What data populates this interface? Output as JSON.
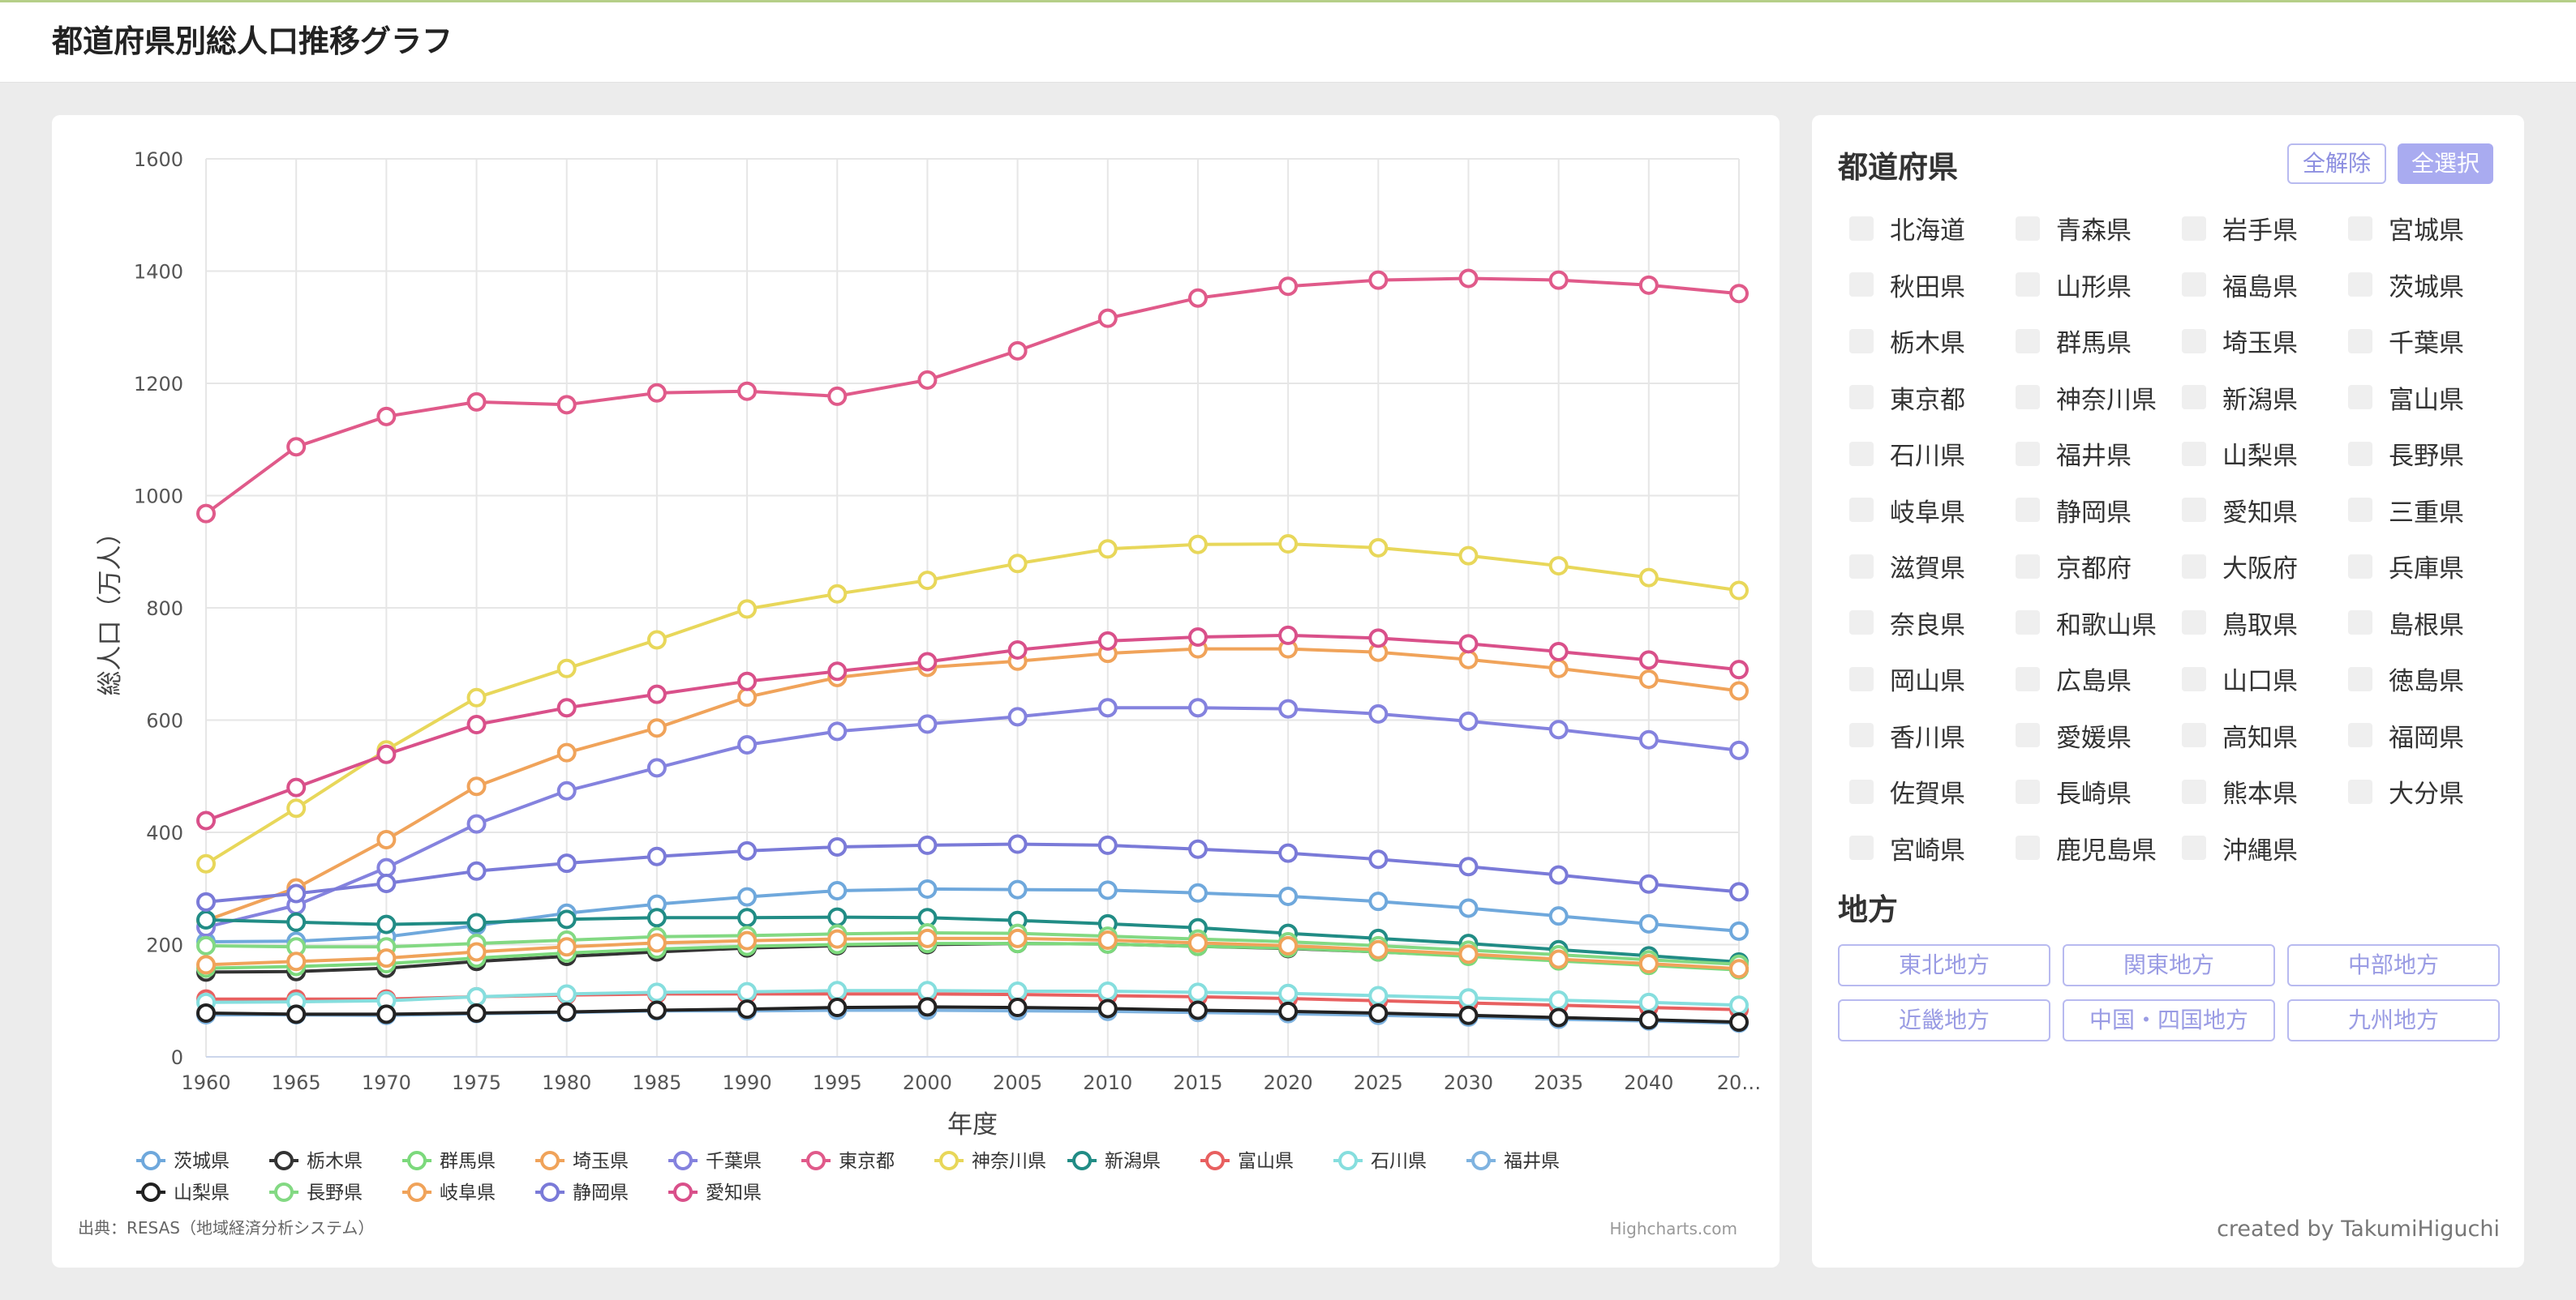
{
  "header": {
    "title": "都道府県別総人口推移グラフ"
  },
  "sidebar": {
    "pref_title": "都道府県",
    "clear_all_label": "全解除",
    "select_all_label": "全選択",
    "prefectures": [
      "北海道",
      "青森県",
      "岩手県",
      "宮城県",
      "秋田県",
      "山形県",
      "福島県",
      "茨城県",
      "栃木県",
      "群馬県",
      "埼玉県",
      "千葉県",
      "東京都",
      "神奈川県",
      "新潟県",
      "富山県",
      "石川県",
      "福井県",
      "山梨県",
      "長野県",
      "岐阜県",
      "静岡県",
      "愛知県",
      "三重県",
      "滋賀県",
      "京都府",
      "大阪府",
      "兵庫県",
      "奈良県",
      "和歌山県",
      "鳥取県",
      "島根県",
      "岡山県",
      "広島県",
      "山口県",
      "徳島県",
      "香川県",
      "愛媛県",
      "高知県",
      "福岡県",
      "佐賀県",
      "長崎県",
      "熊本県",
      "大分県",
      "宮崎県",
      "鹿児島県",
      "沖縄県"
    ],
    "region_title": "地方",
    "regions": [
      "東北地方",
      "関東地方",
      "中部地方",
      "近畿地方",
      "中国・四国地方",
      "九州地方"
    ],
    "credit": "created by TakumiHiguchi"
  },
  "chart_data": {
    "type": "line",
    "title": "",
    "xlabel": "年度",
    "ylabel": "総人口（万人）",
    "ylim": [
      0,
      1600
    ],
    "yticks": [
      "0",
      "200",
      "400",
      "600",
      "800",
      "1000",
      "1200",
      "1400",
      "1600"
    ],
    "x": [
      "1960",
      "1965",
      "1970",
      "1975",
      "1980",
      "1985",
      "1990",
      "1995",
      "2000",
      "2005",
      "2010",
      "2015",
      "2020",
      "2025",
      "2030",
      "2035",
      "2040",
      "2045"
    ],
    "x_tick_labels": [
      "1960",
      "1965",
      "1970",
      "1975",
      "1980",
      "1985",
      "1990",
      "1995",
      "2000",
      "2005",
      "2010",
      "2015",
      "2020",
      "2025",
      "2030",
      "2035",
      "2040",
      "20…"
    ],
    "grid": true,
    "legend": "bottom",
    "source": "出典：RESAS（地域経済分析システム）",
    "credit": "Highcharts.com",
    "series": [
      {
        "name": "茨城県",
        "color": "#6fa8dc",
        "values": [
          205,
          206,
          214,
          234,
          256,
          272,
          285,
          296,
          299,
          298,
          297,
          292,
          286,
          277,
          265,
          251,
          237,
          224
        ]
      },
      {
        "name": "栃木県",
        "color": "#333333",
        "values": [
          151,
          152,
          158,
          170,
          179,
          187,
          194,
          198,
          200,
          202,
          201,
          197,
          193,
          187,
          180,
          172,
          164,
          156
        ]
      },
      {
        "name": "群馬県",
        "color": "#7cd97c",
        "values": [
          158,
          161,
          166,
          176,
          185,
          192,
          197,
          200,
          202,
          202,
          201,
          197,
          194,
          187,
          179,
          171,
          163,
          155
        ]
      },
      {
        "name": "埼玉県",
        "color": "#f0a35a",
        "values": [
          243,
          301,
          387,
          482,
          542,
          586,
          641,
          676,
          694,
          705,
          719,
          727,
          727,
          721,
          708,
          692,
          673,
          652
        ]
      },
      {
        "name": "千葉県",
        "color": "#8482de",
        "values": [
          231,
          270,
          337,
          415,
          474,
          515,
          556,
          580,
          593,
          606,
          622,
          622,
          620,
          611,
          598,
          583,
          565,
          546
        ]
      },
      {
        "name": "東京都",
        "color": "#e05a8a",
        "values": [
          968,
          1087,
          1141,
          1167,
          1162,
          1183,
          1186,
          1177,
          1206,
          1258,
          1316,
          1352,
          1373,
          1384,
          1387,
          1384,
          1375,
          1360
        ]
      },
      {
        "name": "神奈川県",
        "color": "#e8d75a",
        "values": [
          344,
          443,
          547,
          640,
          692,
          743,
          798,
          825,
          849,
          879,
          905,
          913,
          914,
          907,
          893,
          875,
          854,
          831
        ]
      },
      {
        "name": "新潟県",
        "color": "#218c85",
        "values": [
          244,
          240,
          236,
          239,
          245,
          248,
          248,
          249,
          248,
          243,
          237,
          230,
          220,
          211,
          202,
          191,
          180,
          169
        ]
      },
      {
        "name": "富山県",
        "color": "#e86060",
        "values": [
          103,
          103,
          103,
          107,
          110,
          112,
          112,
          112,
          112,
          111,
          109,
          107,
          104,
          100,
          96,
          92,
          88,
          84
        ]
      },
      {
        "name": "石川県",
        "color": "#86dede",
        "values": [
          97,
          98,
          100,
          107,
          112,
          115,
          116,
          118,
          118,
          117,
          117,
          115,
          113,
          109,
          105,
          101,
          97,
          92
        ]
      },
      {
        "name": "福井県",
        "color": "#7fb3e0",
        "values": [
          75,
          75,
          74,
          77,
          79,
          82,
          82,
          83,
          83,
          82,
          81,
          79,
          77,
          74,
          71,
          67,
          64,
          60
        ]
      },
      {
        "name": "山梨県",
        "color": "#222222",
        "values": [
          78,
          76,
          76,
          78,
          80,
          83,
          85,
          88,
          89,
          88,
          86,
          83,
          81,
          78,
          74,
          70,
          66,
          62
        ]
      },
      {
        "name": "長野県",
        "color": "#83d983",
        "values": [
          198,
          196,
          196,
          202,
          208,
          214,
          216,
          219,
          221,
          220,
          215,
          210,
          205,
          198,
          190,
          182,
          173,
          165
        ]
      },
      {
        "name": "岐阜県",
        "color": "#f0a35a",
        "values": [
          164,
          170,
          176,
          187,
          196,
          203,
          207,
          210,
          211,
          211,
          208,
          203,
          198,
          191,
          183,
          174,
          166,
          157
        ]
      },
      {
        "name": "静岡県",
        "color": "#7a7ad8",
        "values": [
          276,
          291,
          309,
          331,
          345,
          357,
          367,
          374,
          377,
          379,
          377,
          370,
          363,
          352,
          339,
          324,
          308,
          294
        ]
      },
      {
        "name": "愛知県",
        "color": "#d9508a",
        "values": [
          421,
          480,
          539,
          592,
          622,
          646,
          669,
          687,
          704,
          725,
          741,
          748,
          751,
          746,
          736,
          722,
          707,
          690
        ]
      }
    ]
  }
}
